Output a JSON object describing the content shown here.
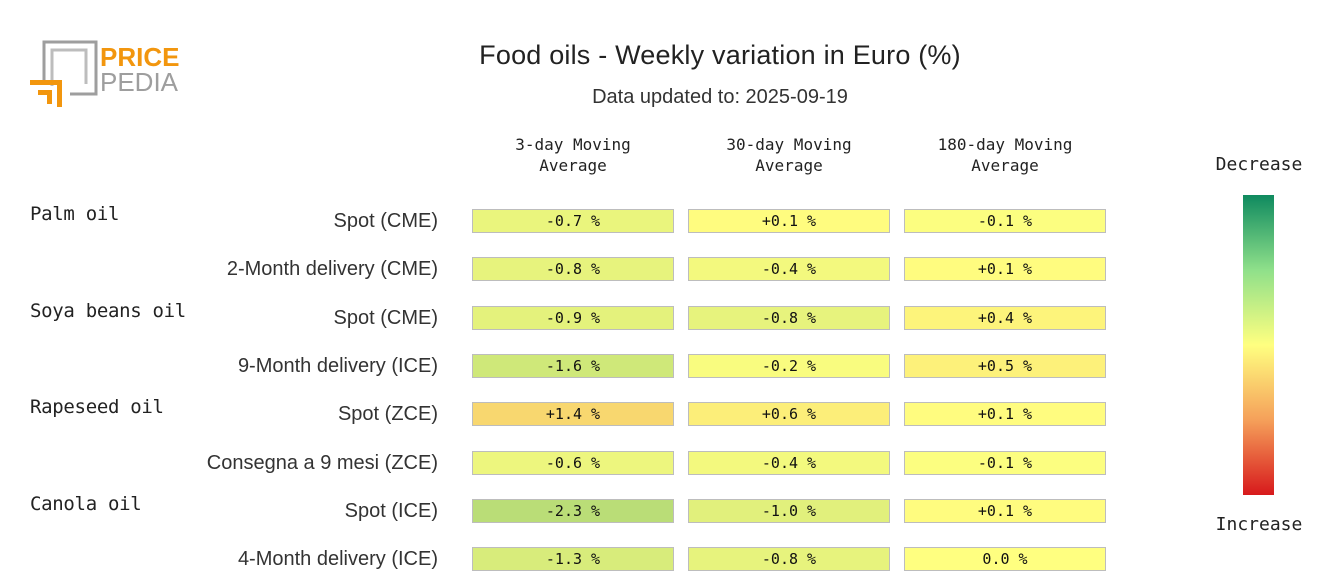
{
  "logo": {
    "line1": "PRICE",
    "line2": "PEDIA"
  },
  "chart_data": {
    "type": "heatmap",
    "title": "Food oils - Weekly variation in Euro (%)",
    "subtitle": "Data updated to: 2025-09-19",
    "columns": [
      "3-day Moving\nAverage",
      "30-day Moving\nAverage",
      "180-day Moving\nAverage"
    ],
    "groups": [
      {
        "name": "Palm oil",
        "rows": [
          {
            "label": "Spot (CME)",
            "values": [
              -0.7,
              0.1,
              -0.1
            ],
            "display": [
              "-0.7 %",
              "+0.1 %",
              "-0.1 %"
            ]
          },
          {
            "label": "2-Month delivery (CME)",
            "values": [
              -0.8,
              -0.4,
              0.1
            ],
            "display": [
              "-0.8 %",
              "-0.4 %",
              "+0.1 %"
            ]
          }
        ]
      },
      {
        "name": "Soya beans oil",
        "rows": [
          {
            "label": "Spot (CME)",
            "values": [
              -0.9,
              -0.8,
              0.4
            ],
            "display": [
              "-0.9 %",
              "-0.8 %",
              "+0.4 %"
            ]
          },
          {
            "label": "9-Month delivery (ICE)",
            "values": [
              -1.6,
              -0.2,
              0.5
            ],
            "display": [
              "-1.6 %",
              "-0.2 %",
              "+0.5 %"
            ]
          }
        ]
      },
      {
        "name": "Rapeseed oil",
        "rows": [
          {
            "label": "Spot (ZCE)",
            "values": [
              1.4,
              0.6,
              0.1
            ],
            "display": [
              "+1.4 %",
              "+0.6 %",
              "+0.1 %"
            ]
          },
          {
            "label": "Consegna a 9 mesi (ZCE)",
            "values": [
              -0.6,
              -0.4,
              -0.1
            ],
            "display": [
              "-0.6 %",
              "-0.4 %",
              "-0.1 %"
            ]
          }
        ]
      },
      {
        "name": "Canola oil",
        "rows": [
          {
            "label": "Spot (ICE)",
            "values": [
              -2.3,
              -1.0,
              0.1
            ],
            "display": [
              "-2.3 %",
              "-1.0 %",
              "+0.1 %"
            ]
          },
          {
            "label": "4-Month delivery (ICE)",
            "values": [
              -1.3,
              -0.8,
              0.0
            ],
            "display": [
              "-1.3 %",
              "-0.8 %",
              "0.0 %"
            ]
          }
        ]
      }
    ],
    "legend": {
      "top": "Decrease",
      "bottom": "Increase"
    },
    "colors": {
      "decrease": "#0f8a5f",
      "neutral": "#ffff80",
      "increase": "#d7191c"
    }
  }
}
